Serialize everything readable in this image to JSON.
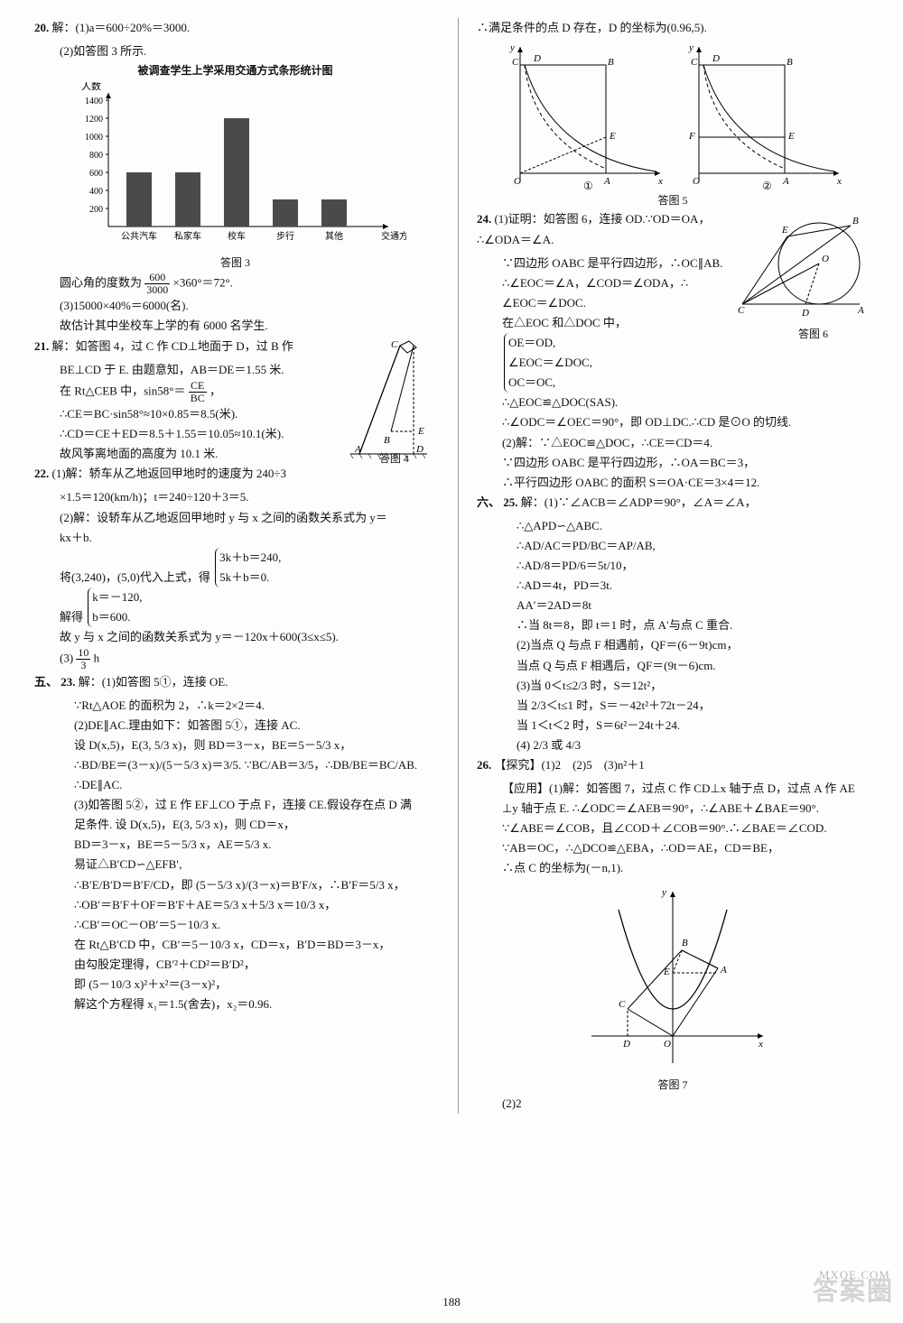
{
  "page_number": "188",
  "watermark_main": "答案圈",
  "watermark_url": "MXQE.COM",
  "left": {
    "q20": {
      "num": "20.",
      "l1": "解：(1)a＝600÷20%＝3000.",
      "l2": "(2)如答图 3 所示.",
      "chart_title": "被调查学生上学采用交通方式条形统计图",
      "chart": {
        "ylabel": "人数",
        "categories": [
          "公共汽车",
          "私家车",
          "校车",
          "步行",
          "其他"
        ],
        "values": [
          600,
          600,
          1200,
          300,
          300
        ],
        "xlabel": "交通方式",
        "yticks": [
          200,
          400,
          600,
          800,
          1000,
          1200,
          1400
        ],
        "bar_color": "#4a4a4a",
        "grid_color": "#666",
        "bg": "#fdfdfb"
      },
      "fig3": "答图 3",
      "l3a": "圆心角的度数为",
      "l3frac_n": "600",
      "l3frac_d": "3000",
      "l3b": "×360°＝72°.",
      "l4": "(3)15000×40%＝6000(名).",
      "l5": "故估计其中坐校车上学的有 6000 名学生."
    },
    "q21": {
      "num": "21.",
      "l1": "解：如答图 4，过 C 作 CD⊥地面于 D，过 B 作",
      "l2": "BE⊥CD 于 E. 由题意知，AB＝DE＝1.55 米.",
      "l3a": "在 Rt△CEB 中，sin58°＝",
      "l3n": "CE",
      "l3d": "BC",
      "l3b": "，",
      "l4": "∴CE＝BC·sin58°≈10×0.85＝8.5(米).",
      "l5": "∴CD＝CE＋ED＝8.5＋1.55＝10.05≈10.1(米).",
      "l6": "故风筝离地面的高度为 10.1 米.",
      "fig4": "答图 4"
    },
    "q22": {
      "num": "22.",
      "l1": "(1)解：轿车从乙地返回甲地时的速度为 240÷3",
      "l2": "×1.5＝120(km/h)；t＝240÷120＋3＝5.",
      "l3": "(2)解：设轿车从乙地返回甲地时 y 与 x 之间的函数关系式为 y＝",
      "l4": "kx＋b.",
      "l5": "将(3,240)，(5,0)代入上式，得",
      "sys1a": "3k＋b＝240,",
      "sys1b": "5k＋b＝0.",
      "l6": "解得",
      "sys2a": "k＝－120,",
      "sys2b": "b＝600.",
      "l7": "故 y 与 x 之间的函数关系式为 y＝－120x＋600(3≤x≤5).",
      "l8a": "(3)",
      "l8n": "10",
      "l8d": "3",
      "l8b": " h"
    },
    "sec5": "五、",
    "q23": {
      "num": "23.",
      "l1": "解：(1)如答图 5①，连接 OE.",
      "l2": "∵Rt△AOE 的面积为 2，∴k＝2×2＝4.",
      "l3": "(2)DE∥AC.理由如下：如答图 5①，连接 AC.",
      "l4": "设 D(x,5)，E(3, 5/3 x)，则 BD＝3－x，BE＝5－5/3 x，",
      "l5": "∴BD/BE＝(3－x)/(5－5/3 x)＝3/5. ∵BC/AB＝3/5，∴DB/BE＝BC/AB. ∴DE∥AC.",
      "l6": "(3)如答图 5②，过 E 作 EF⊥CO 于点 F，连接 CE.假设存在点 D 满",
      "l7": "足条件. 设 D(x,5)，E(3, 5/3 x)，则 CD＝x，",
      "l8": "BD＝3－x，BE＝5－5/3 x，AE＝5/3 x.",
      "l9": "易证△B′CD∽△EFB′,",
      "l10": "∴B′E/B′D＝B′F/CD，即 (5－5/3 x)/(3－x)＝B′F/x，∴B′F＝5/3 x，",
      "l11": "∴OB′＝B′F＋OF＝B′F＋AE＝5/3 x＋5/3 x＝10/3 x，",
      "l12": "∴CB′＝OC－OB′＝5－10/3 x.",
      "l13": "在 Rt△B′CD 中，CB′＝5－10/3 x，CD＝x，B′D＝BD＝3－x，",
      "l14": "由勾股定理得，CB′²＋CD²＝B′D²，",
      "l15": "即 (5－10/3 x)²＋x²＝(3－x)²，",
      "l16": "解这个方程得 x₁＝1.5(舍去)，x₂＝0.96."
    }
  },
  "right": {
    "top": "∴满足条件的点 D 存在，D 的坐标为(0.96,5).",
    "fig5": "答图 5",
    "q24": {
      "num": "24.",
      "l1": "(1)证明：如答图 6，连接 OD.∵OD＝OA，∴∠ODA＝∠A.",
      "l2": "∵四边形 OABC 是平行四边形，∴OC∥AB.",
      "l3": "∴∠EOC＝∠A，∠COD＝∠ODA，∴",
      "l4": "∠EOC＝∠DOC.",
      "l5": "在△EOC 和△DOC 中，",
      "sysa": "OE＝OD,",
      "sysb": "∠EOC＝∠DOC,",
      "sysc": "OC＝OC,",
      "l6": "∴△EOC≌△DOC(SAS).",
      "fig6": "答图 6",
      "l7": "∴∠ODC＝∠OEC＝90°，即 OD⊥DC.∴CD 是⊙O 的切线.",
      "l8": "(2)解：∵△EOC≌△DOC，∴CE＝CD＝4.",
      "l9": "∵四边形 OABC 是平行四边形，∴OA＝BC＝3，",
      "l10": "∴平行四边形 OABC 的面积 S＝OA·CE＝3×4＝12."
    },
    "sec6": "六、",
    "q25": {
      "num": "25.",
      "l1": "解：(1)∵∠ACB＝∠ADP＝90°，∠A＝∠A，",
      "l2": "∴△APD∽△ABC.",
      "l3": "∴AD/AC＝PD/BC＝AP/AB,",
      "l4": "∴AD/8＝PD/6＝5t/10，",
      "l5": "∴AD＝4t，PD＝3t.",
      "l6": "AA′＝2AD＝8t",
      "l7": "∴当 8t＝8，即 t＝1 时，点 A′与点 C 重合.",
      "l8": "(2)当点 Q 与点 F 相遇前，QF＝(6－9t)cm，",
      "l9": "当点 Q 与点 F 相遇后，QF＝(9t－6)cm.",
      "l10": "(3)当 0＜t≤2/3 时，S＝12t²，",
      "l11": "当 2/3＜t≤1 时，S＝－42t²＋72t－24，",
      "l12": "当 1＜t＜2 时，S＝6t²－24t＋24.",
      "l13": "(4) 2/3 或 4/3"
    },
    "q26": {
      "num": "26.",
      "l1": "【探究】(1)2　(2)5　(3)n²＋1",
      "l2": "【应用】(1)解：如答图 7，过点 C 作 CD⊥x 轴于点 D，过点 A 作 AE",
      "l3": "⊥y 轴于点 E. ∴∠ODC＝∠AEB＝90°，∴∠ABE＋∠BAE＝90°.",
      "l4": "∵∠ABE＝∠COB，且∠COD＋∠COB＝90°.∴∠BAE＝∠COD.",
      "l5": "∵AB＝OC，∴△DCO≌△EBA，∴OD＝AE，CD＝BE，",
      "l6": "∴点 C 的坐标为(－n,1).",
      "fig7": "答图 7",
      "l7": "(2)2"
    }
  }
}
